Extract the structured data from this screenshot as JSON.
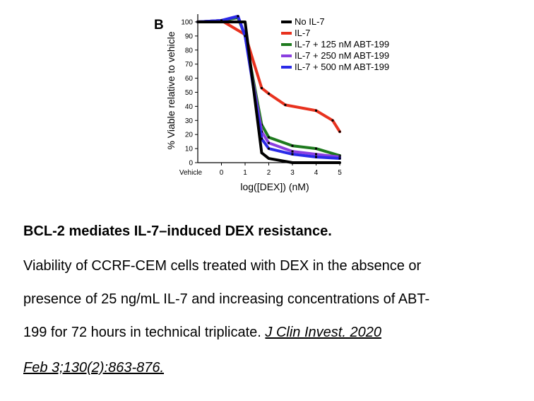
{
  "chart_data": {
    "type": "line",
    "panel_label": "B",
    "xlabel": "log([DEX]) (nM)",
    "ylabel": "% Viable relative to vehicle",
    "x_ticks": [
      "Vehicle",
      "0",
      "1",
      "2",
      "3",
      "4",
      "5"
    ],
    "x_tick_values": [
      -0.4,
      0,
      1,
      2,
      3,
      4,
      5
    ],
    "y_ticks": [
      0,
      10,
      20,
      30,
      40,
      50,
      60,
      70,
      80,
      90,
      100
    ],
    "xlim": [
      -1.0,
      5.0
    ],
    "ylim": [
      0,
      104
    ],
    "legend_position": "top-right",
    "series": [
      {
        "name": "No IL-7",
        "color": "#000000",
        "x": [
          -1,
          1,
          1.7,
          2,
          3,
          4,
          5
        ],
        "y": [
          100,
          100,
          7,
          3,
          0,
          0,
          0
        ]
      },
      {
        "name": "IL-7",
        "color": "#e8321e",
        "x": [
          -1,
          0,
          1,
          1.7,
          2,
          2.7,
          4,
          4.7,
          5
        ],
        "y": [
          100,
          101,
          91,
          53,
          49,
          41,
          37,
          30,
          22
        ]
      },
      {
        "name": "IL-7 + 125 nM ABT-199",
        "color": "#1e7a1e",
        "x": [
          -1,
          0,
          0.7,
          1,
          1.7,
          2,
          3,
          4,
          5
        ],
        "y": [
          100,
          101,
          103,
          90,
          27,
          18,
          12,
          10,
          5
        ]
      },
      {
        "name": "IL-7 + 250 nM ABT-199",
        "color": "#8a3fe0",
        "x": [
          -1,
          0,
          0.7,
          1,
          1.7,
          2,
          3,
          4,
          5
        ],
        "y": [
          100,
          101,
          104,
          90,
          22,
          14,
          8,
          6,
          4
        ]
      },
      {
        "name": "IL-7 + 500 nM ABT-199",
        "color": "#2a2ae8",
        "x": [
          -1,
          0,
          0.7,
          1,
          1.7,
          2,
          3,
          4,
          5
        ],
        "y": [
          100,
          101,
          104,
          90,
          17,
          10,
          6,
          4,
          3
        ]
      }
    ]
  },
  "caption": {
    "title": "BCL-2 mediates IL-7–induced DEX resistance.",
    "line1": "Viability of CCRF-CEM cells treated with DEX in the absence or",
    "line2": "presence of 25 ng/mL IL-7 and increasing concentrations of ABT-",
    "line3": "199 for 72 hours in technical triplicate.",
    "citation_part1": "J Clin Invest. 2020",
    "citation_part2": "Feb 3;130(2):863-876."
  }
}
